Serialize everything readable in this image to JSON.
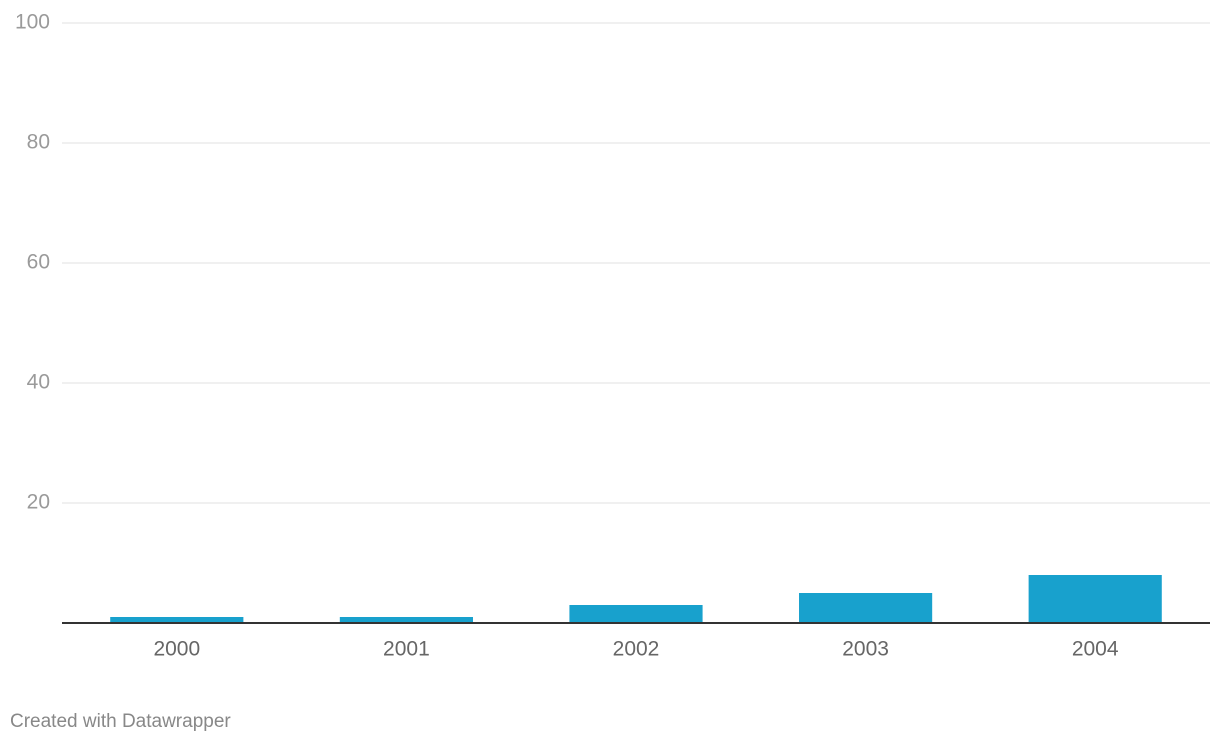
{
  "chart_data": {
    "type": "bar",
    "categories": [
      "2000",
      "2001",
      "2002",
      "2003",
      "2004"
    ],
    "values": [
      1,
      1,
      3,
      5,
      8
    ],
    "color": "#18a1cd",
    "ylim": [
      0,
      100
    ],
    "yticks": [
      20,
      40,
      60,
      80,
      100
    ],
    "grid": true,
    "credit": "Created with Datawrapper"
  }
}
